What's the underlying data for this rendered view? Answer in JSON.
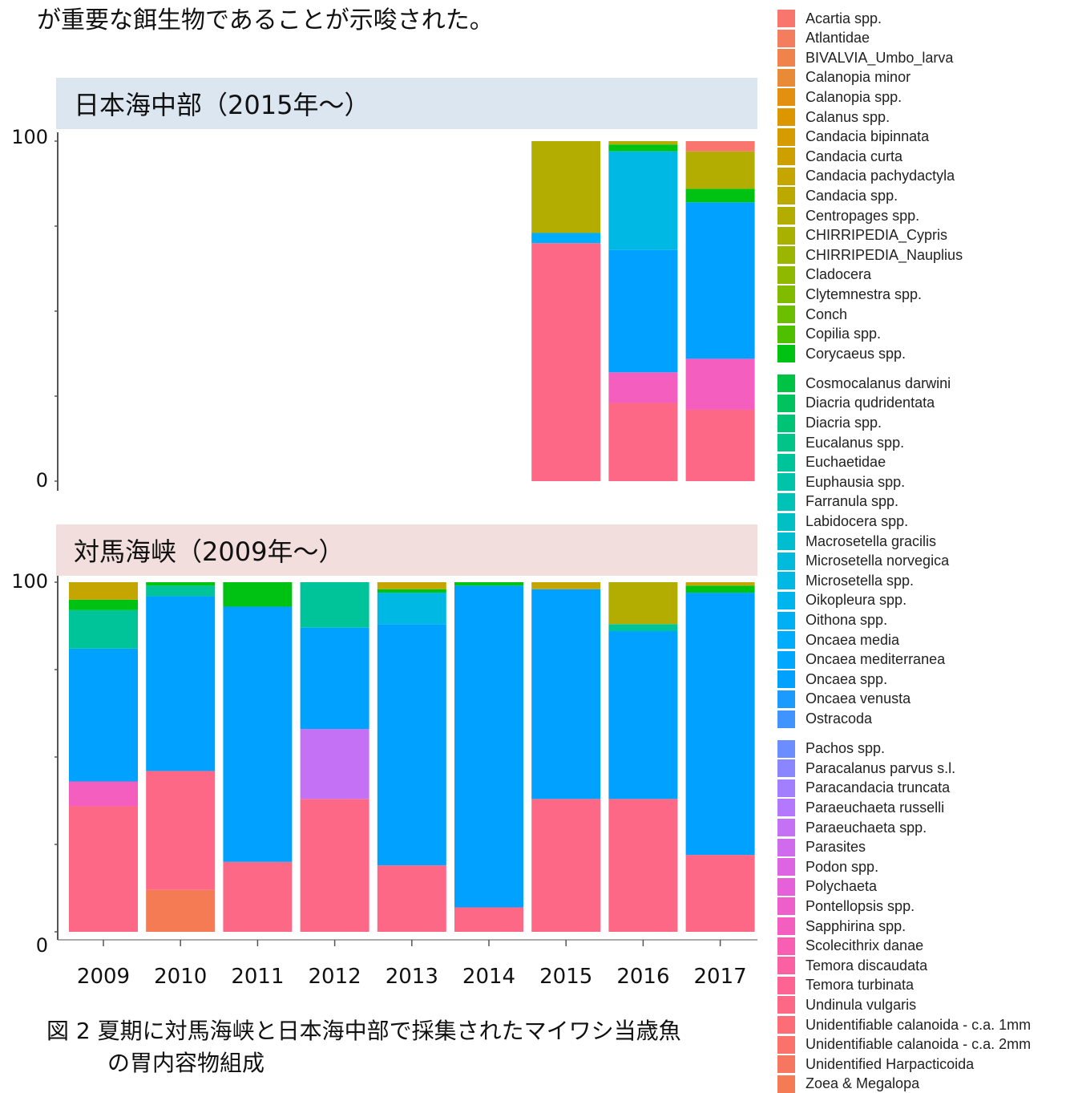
{
  "intro_text": "が重要な餌生物であることが示唆された。",
  "panels": {
    "top_title": "日本海中部（2015年〜）",
    "bottom_title": "対馬海峡（2009年〜）"
  },
  "caption": {
    "line1": "図 2  夏期に対馬海峡と日本海中部で採集されたマイワシ当歳魚",
    "line2": "の胃内容物組成"
  },
  "legend": [
    {
      "label": "Acartia spp.",
      "color": "#f8766d"
    },
    {
      "label": "Atlantidae",
      "color": "#f47d5d"
    },
    {
      "label": "BIVALVIA_Umbo_larva",
      "color": "#ef834b"
    },
    {
      "label": "Calanopia minor",
      "color": "#e98a36"
    },
    {
      "label": "Calanopia spp.",
      "color": "#e39010"
    },
    {
      "label": "Calanus spp.",
      "color": "#dc9600"
    },
    {
      "label": "Candacia bipinnata",
      "color": "#d59b00"
    },
    {
      "label": "Candacia curta",
      "color": "#cda000"
    },
    {
      "label": "Candacia pachydactyla",
      "color": "#c5a500"
    },
    {
      "label": "Candacia spp.",
      "color": "#bca900"
    },
    {
      "label": "Centropages spp.",
      "color": "#b2ad00"
    },
    {
      "label": "CHIRRIPEDIA_Cypris",
      "color": "#a8b100"
    },
    {
      "label": "CHIRRIPEDIA_Nauplius",
      "color": "#9cb500"
    },
    {
      "label": "Cladocera",
      "color": "#8fb800"
    },
    {
      "label": "Clytemnestra spp.",
      "color": "#80bb00"
    },
    {
      "label": "Conch",
      "color": "#6cbe00"
    },
    {
      "label": "Copilia spp.",
      "color": "#4fc000"
    },
    {
      "label": "Corycaeus spp.",
      "color": "#00c213"
    },
    {
      "label": "Cosmocalanus darwini",
      "color": "#00c244"
    },
    {
      "label": "Diacria qudridentata",
      "color": "#00c35f"
    },
    {
      "label": "Diacria spp.",
      "color": "#00c475"
    },
    {
      "label": "Eucalanus spp.",
      "color": "#00c488"
    },
    {
      "label": "Euchaetidae",
      "color": "#00c499"
    },
    {
      "label": "Euphausia spp.",
      "color": "#00c3a9"
    },
    {
      "label": "Farranula spp.",
      "color": "#00c2b7"
    },
    {
      "label": "Labidocera spp.",
      "color": "#00c0c4"
    },
    {
      "label": "Macrosetella gracilis",
      "color": "#00bed0"
    },
    {
      "label": "Microsetella norvegica",
      "color": "#00bbdb"
    },
    {
      "label": "Microsetella spp.",
      "color": "#00b8e4"
    },
    {
      "label": "Oikopleura spp.",
      "color": "#00b4ed"
    },
    {
      "label": "Oithona spp.",
      "color": "#00b0f5"
    },
    {
      "label": "Oncaea media",
      "color": "#00acfc"
    },
    {
      "label": "Oncaea mediterranea",
      "color": "#00a7ff"
    },
    {
      "label": "Oncaea spp.",
      "color": "#00a1ff"
    },
    {
      "label": "Oncaea venusta",
      "color": "#1c9bff"
    },
    {
      "label": "Ostracoda",
      "color": "#3f94ff"
    },
    {
      "label": "Pachos spp.",
      "color": "#6b8dff"
    },
    {
      "label": "Paracalanus parvus s.l.",
      "color": "#8a86ff"
    },
    {
      "label": "Paracandacia truncata",
      "color": "#a17fff"
    },
    {
      "label": "Paraeuchaeta russelli",
      "color": "#b478ff"
    },
    {
      "label": "Paraeuchaeta spp.",
      "color": "#c471f6"
    },
    {
      "label": "Parasites",
      "color": "#d16bee"
    },
    {
      "label": "Podon spp.",
      "color": "#dd65e4"
    },
    {
      "label": "Polychaeta",
      "color": "#e661d9"
    },
    {
      "label": "Pontellopsis spp.",
      "color": "#ee5fcc"
    },
    {
      "label": "Sapphirina spp.",
      "color": "#f45ebf"
    },
    {
      "label": "Scolecithrix danae",
      "color": "#f85eb1"
    },
    {
      "label": "Temora discaudata",
      "color": "#fb61a2"
    },
    {
      "label": "Temora turbinata",
      "color": "#fd6494"
    },
    {
      "label": "Undinula vulgaris",
      "color": "#fd6886"
    },
    {
      "label": "Unidentifiable calanoida - c.a. 1mm",
      "color": "#fc6d78"
    },
    {
      "label": "Unidentifiable calanoida - c.a. 2mm",
      "color": "#fa726b"
    },
    {
      "label": "Unidentified Harpacticoida",
      "color": "#f7765f"
    },
    {
      "label": "Zoea & Megalopa",
      "color": "#f47b53"
    }
  ],
  "chart_data": [
    {
      "type": "bar",
      "stacked": true,
      "title": "日本海中部（2015年〜）",
      "categories": [
        "2009",
        "2010",
        "2011",
        "2012",
        "2013",
        "2014",
        "2015",
        "2016",
        "2017"
      ],
      "y_ticks": [
        "0",
        "100"
      ],
      "ylim": [
        0,
        100
      ],
      "bars": [
        {
          "year": "2009",
          "segments": []
        },
        {
          "year": "2010",
          "segments": []
        },
        {
          "year": "2011",
          "segments": []
        },
        {
          "year": "2012",
          "segments": []
        },
        {
          "year": "2013",
          "segments": []
        },
        {
          "year": "2014",
          "segments": []
        },
        {
          "year": "2015",
          "segments": [
            {
              "taxon": "Undinula vulgaris",
              "value": 70
            },
            {
              "taxon": "Oncaea media",
              "value": 3
            },
            {
              "taxon": "Centropages spp.",
              "value": 27
            }
          ]
        },
        {
          "year": "2016",
          "segments": [
            {
              "taxon": "Undinula vulgaris",
              "value": 23
            },
            {
              "taxon": "Sapphirina spp.",
              "value": 9
            },
            {
              "taxon": "Oncaea spp.",
              "value": 36
            },
            {
              "taxon": "Microsetella spp.",
              "value": 29
            },
            {
              "taxon": "Corycaeus spp.",
              "value": 2
            },
            {
              "taxon": "Centropages spp.",
              "value": 1
            }
          ]
        },
        {
          "year": "2017",
          "segments": [
            {
              "taxon": "Undinula vulgaris",
              "value": 21
            },
            {
              "taxon": "Sapphirina spp.",
              "value": 15
            },
            {
              "taxon": "Oncaea spp.",
              "value": 46
            },
            {
              "taxon": "Corycaeus spp.",
              "value": 4
            },
            {
              "taxon": "Centropages spp.",
              "value": 11
            },
            {
              "taxon": "Acartia spp.",
              "value": 3
            }
          ]
        }
      ]
    },
    {
      "type": "bar",
      "stacked": true,
      "title": "対馬海峡（2009年〜）",
      "categories": [
        "2009",
        "2010",
        "2011",
        "2012",
        "2013",
        "2014",
        "2015",
        "2016",
        "2017"
      ],
      "y_ticks": [
        "0",
        "100"
      ],
      "ylim": [
        0,
        100
      ],
      "bars": [
        {
          "year": "2009",
          "segments": [
            {
              "taxon": "Undinula vulgaris",
              "value": 36
            },
            {
              "taxon": "Sapphirina spp.",
              "value": 7
            },
            {
              "taxon": "Oncaea spp.",
              "value": 38
            },
            {
              "taxon": "Euchaetidae",
              "value": 11
            },
            {
              "taxon": "Corycaeus spp.",
              "value": 3
            },
            {
              "taxon": "Candacia pachydactyla",
              "value": 5
            }
          ]
        },
        {
          "year": "2010",
          "segments": [
            {
              "taxon": "Zoea & Megalopa",
              "value": 12
            },
            {
              "taxon": "Undinula vulgaris",
              "value": 34
            },
            {
              "taxon": "Oncaea spp.",
              "value": 50
            },
            {
              "taxon": "Euchaetidae",
              "value": 3
            },
            {
              "taxon": "Corycaeus spp.",
              "value": 1
            }
          ]
        },
        {
          "year": "2011",
          "segments": [
            {
              "taxon": "Undinula vulgaris",
              "value": 20
            },
            {
              "taxon": "Oncaea spp.",
              "value": 73
            },
            {
              "taxon": "Corycaeus spp.",
              "value": 7
            }
          ]
        },
        {
          "year": "2012",
          "segments": [
            {
              "taxon": "Undinula vulgaris",
              "value": 38
            },
            {
              "taxon": "Paraeuchaeta spp.",
              "value": 20
            },
            {
              "taxon": "Oncaea spp.",
              "value": 29
            },
            {
              "taxon": "Euchaetidae",
              "value": 13
            }
          ]
        },
        {
          "year": "2013",
          "segments": [
            {
              "taxon": "Undinula vulgaris",
              "value": 19
            },
            {
              "taxon": "Oncaea spp.",
              "value": 69
            },
            {
              "taxon": "Microsetella spp.",
              "value": 9
            },
            {
              "taxon": "Corycaeus spp.",
              "value": 1
            },
            {
              "taxon": "Candacia pachydactyla",
              "value": 2
            }
          ]
        },
        {
          "year": "2014",
          "segments": [
            {
              "taxon": "Undinula vulgaris",
              "value": 7
            },
            {
              "taxon": "Oncaea spp.",
              "value": 92
            },
            {
              "taxon": "Corycaeus spp.",
              "value": 1
            }
          ]
        },
        {
          "year": "2015",
          "segments": [
            {
              "taxon": "Undinula vulgaris",
              "value": 38
            },
            {
              "taxon": "Oncaea spp.",
              "value": 60
            },
            {
              "taxon": "Candacia pachydactyla",
              "value": 2
            }
          ]
        },
        {
          "year": "2016",
          "segments": [
            {
              "taxon": "Undinula vulgaris",
              "value": 38
            },
            {
              "taxon": "Oncaea spp.",
              "value": 48
            },
            {
              "taxon": "Euchaetidae",
              "value": 2
            },
            {
              "taxon": "Centropages spp.",
              "value": 12
            }
          ]
        },
        {
          "year": "2017",
          "segments": [
            {
              "taxon": "Undinula vulgaris",
              "value": 22
            },
            {
              "taxon": "Oncaea spp.",
              "value": 75
            },
            {
              "taxon": "Corycaeus spp.",
              "value": 2
            },
            {
              "taxon": "Candacia pachydactyla",
              "value": 1
            }
          ]
        }
      ]
    }
  ]
}
